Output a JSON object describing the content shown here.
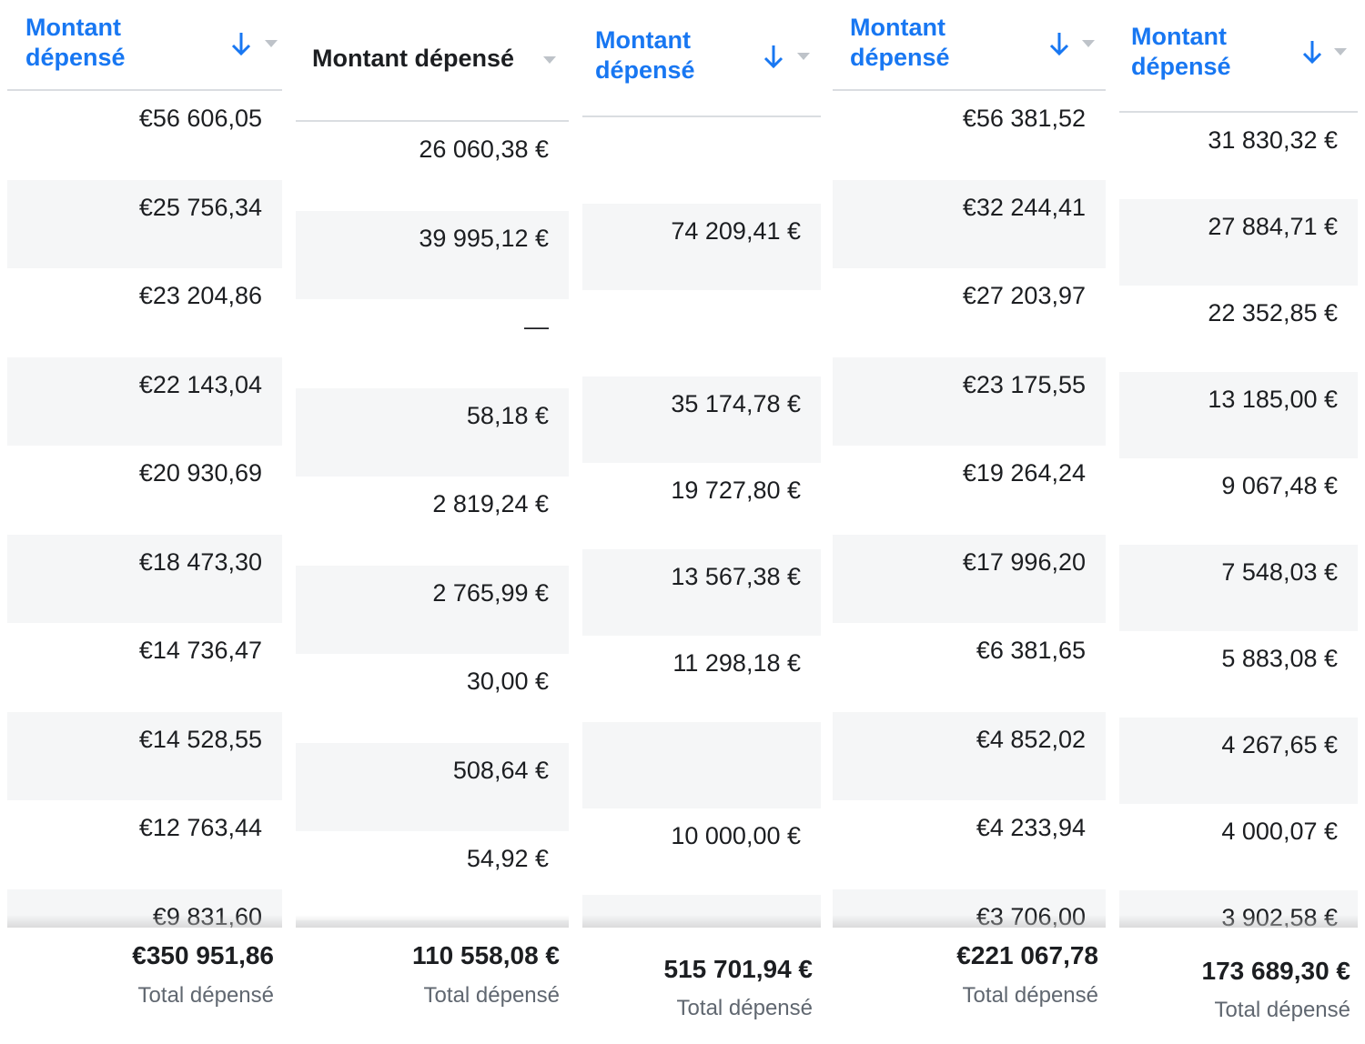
{
  "columns": [
    {
      "header": "Montant dépensé",
      "header_color": "#1877f2",
      "sorted": true,
      "rows": [
        "€56 606,05",
        "€25 756,34",
        "€23 204,86",
        "€22 143,04",
        "€20 930,69",
        "€18 473,30",
        "€14 736,47",
        "€14 528,55",
        "€12 763,44",
        "€9 831,60"
      ],
      "total": "€350 951,86",
      "total_label": "Total dépensé"
    },
    {
      "header": "Montant dépensé",
      "header_color": "#1c1e21",
      "sorted": false,
      "rows": [
        "26 060,38 €",
        "39 995,12 €",
        "—",
        "58,18 €",
        "2 819,24 €",
        "2 765,99 €",
        "30,00 €",
        "508,64 €",
        "54,92 €",
        null
      ],
      "total": "110 558,08 €",
      "total_label": "Total dépensé"
    },
    {
      "header": "Montant dépensé",
      "header_color": "#1877f2",
      "sorted": true,
      "rows": [
        null,
        "74 209,41 €",
        null,
        "35 174,78 €",
        "19 727,80 €",
        "13 567,38 €",
        "11 298,18 €",
        null,
        "10 000,00 €",
        null
      ],
      "total": "515 701,94 €",
      "total_label": "Total dépensé"
    },
    {
      "header": "Montant dépensé",
      "header_color": "#1877f2",
      "sorted": true,
      "rows": [
        "€56 381,52",
        "€32 244,41",
        "€27 203,97",
        "€23 175,55",
        "€19 264,24",
        "€17 996,20",
        "€6 381,65",
        "€4 852,02",
        "€4 233,94",
        "€3 706,00"
      ],
      "total": "€221 067,78",
      "total_label": "Total dépensé"
    },
    {
      "header": "Montant dépensé",
      "header_color": "#1877f2",
      "sorted": true,
      "rows": [
        "31 830,32 €",
        "27 884,71 €",
        "22 352,85 €",
        "13 185,00 €",
        "9 067,48 €",
        "7 548,03 €",
        "5 883,08 €",
        "4 267,65 €",
        "4 000,07 €",
        "3 902,58 €"
      ],
      "total": "173 689,30 €",
      "total_label": "Total dépensé"
    }
  ]
}
